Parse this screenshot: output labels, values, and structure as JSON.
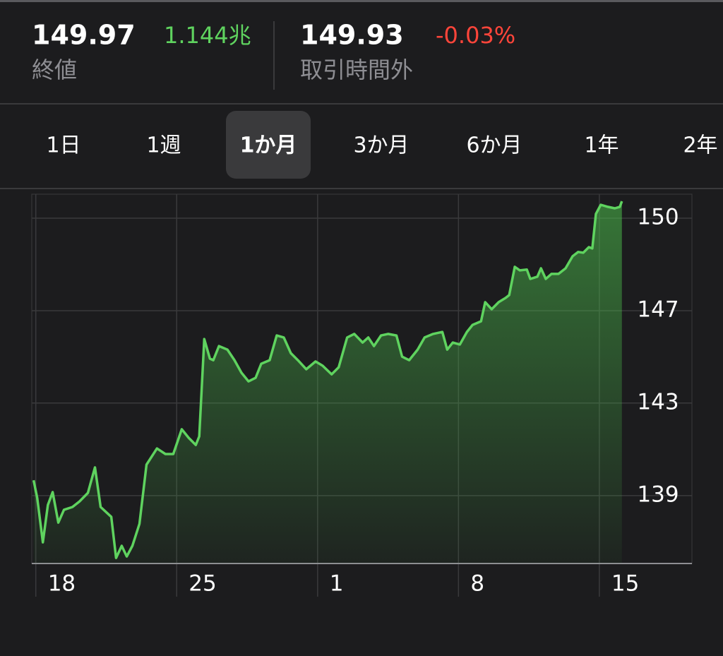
{
  "header": {
    "close_price": "149.97",
    "market_cap": "1.144兆",
    "close_label": "終値",
    "after_hours_price": "149.93",
    "after_hours_change": "-0.03%",
    "after_hours_label": "取引時間外"
  },
  "tabs": [
    {
      "label": "1日"
    },
    {
      "label": "1週"
    },
    {
      "label": "1か月",
      "selected": true
    },
    {
      "label": "3か月"
    },
    {
      "label": "6か月"
    },
    {
      "label": "1年"
    },
    {
      "label": "2年"
    }
  ],
  "chart_data": {
    "type": "line",
    "color": "#5fd35f",
    "x": [
      -0.11,
      0.07,
      0.35,
      0.6,
      0.84,
      1.12,
      1.4,
      1.82,
      2.17,
      2.59,
      2.94,
      3.22,
      3.75,
      3.99,
      4.27,
      4.52,
      4.8,
      5.15,
      5.5,
      6.02,
      6.44,
      6.83,
      7.25,
      7.6,
      7.95,
      8.12,
      8.37,
      8.65,
      8.82,
      9.1,
      9.52,
      9.87,
      10.22,
      10.57,
      10.92,
      11.2,
      11.62,
      11.97,
      12.32,
      12.67,
      13.02,
      13.44,
      13.9,
      14.25,
      14.7,
      15.05,
      15.47,
      15.82,
      16.24,
      16.52,
      16.8,
      17.15,
      17.5,
      17.92,
      18.2,
      18.55,
      18.97,
      19.32,
      19.74,
      20.2,
      20.44,
      20.72,
      21.07,
      21.42,
      21.7,
      22.12,
      22.33,
      22.65,
      23.0,
      23.35,
      23.52,
      23.8,
      24.05,
      24.4,
      24.57,
      24.92,
      25.1,
      25.34,
      25.62,
      25.97,
      26.32,
      26.67,
      26.95,
      27.2,
      27.48,
      27.65,
      27.83,
      28.07,
      28.42,
      28.77,
      29.02,
      29.12
    ],
    "values": [
      139.81,
      139.11,
      137.35,
      138.83,
      139.34,
      138.13,
      138.64,
      138.75,
      138.97,
      139.31,
      140.32,
      138.75,
      138.36,
      136.73,
      137.21,
      136.79,
      137.21,
      138.08,
      140.43,
      141.07,
      140.85,
      140.85,
      141.83,
      141.49,
      141.21,
      141.55,
      145.41,
      144.63,
      144.57,
      145.13,
      144.99,
      144.57,
      144.07,
      143.73,
      143.87,
      144.43,
      144.57,
      145.55,
      145.47,
      144.85,
      144.57,
      144.21,
      144.52,
      144.35,
      144.01,
      144.29,
      145.47,
      145.61,
      145.27,
      145.47,
      145.13,
      145.55,
      145.61,
      145.55,
      144.71,
      144.57,
      144.99,
      145.47,
      145.61,
      145.69,
      144.99,
      145.27,
      145.19,
      145.69,
      145.97,
      146.11,
      146.87,
      146.59,
      146.87,
      147.04,
      147.15,
      148.27,
      148.13,
      148.16,
      147.79,
      147.88,
      148.21,
      147.79,
      147.99,
      147.99,
      148.21,
      148.69,
      148.86,
      148.83,
      149.05,
      149.0,
      150.37,
      150.73,
      150.65,
      150.59,
      150.65,
      150.87
    ],
    "xlim": [
      -0.2,
      32.6
    ],
    "xticks": [
      {
        "value": 0,
        "label": "18"
      },
      {
        "value": 7,
        "label": "25"
      },
      {
        "value": 14,
        "label": "1"
      },
      {
        "value": 21,
        "label": "8"
      },
      {
        "value": 28,
        "label": "15"
      }
    ],
    "ylim": [
      136.51,
      151.15
    ],
    "yticks": [
      {
        "value": 150.2,
        "label": "150"
      },
      {
        "value": 146.53,
        "label": "147"
      },
      {
        "value": 142.87,
        "label": "143"
      },
      {
        "value": 139.2,
        "label": "139"
      }
    ],
    "grid": true
  }
}
